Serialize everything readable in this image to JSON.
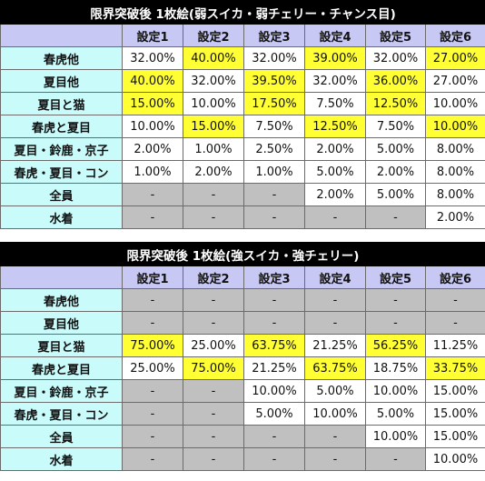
{
  "tables": [
    {
      "title": "限界突破後 1枚絵(弱スイカ・弱チェリー・チャンス目)",
      "columns": [
        "設定1",
        "設定2",
        "設定3",
        "設定4",
        "設定5",
        "設定6"
      ],
      "rows": [
        {
          "label": "春虎他",
          "values": [
            "32.00%",
            "40.00%",
            "32.00%",
            "39.00%",
            "32.00%",
            "27.00%"
          ],
          "highlight": [
            false,
            true,
            false,
            true,
            false,
            true
          ]
        },
        {
          "label": "夏目他",
          "values": [
            "40.00%",
            "32.00%",
            "39.50%",
            "32.00%",
            "36.00%",
            "27.00%"
          ],
          "highlight": [
            true,
            false,
            true,
            false,
            true,
            false
          ]
        },
        {
          "label": "夏目と猫",
          "values": [
            "15.00%",
            "10.00%",
            "17.50%",
            "7.50%",
            "12.50%",
            "10.00%"
          ],
          "highlight": [
            true,
            false,
            true,
            false,
            true,
            false
          ]
        },
        {
          "label": "春虎と夏目",
          "values": [
            "10.00%",
            "15.00%",
            "7.50%",
            "12.50%",
            "7.50%",
            "10.00%"
          ],
          "highlight": [
            false,
            true,
            false,
            true,
            false,
            true
          ]
        },
        {
          "label": "夏目・鈴鹿・京子",
          "values": [
            "2.00%",
            "1.00%",
            "2.50%",
            "2.00%",
            "5.00%",
            "8.00%"
          ],
          "highlight": [
            false,
            false,
            false,
            false,
            false,
            false
          ]
        },
        {
          "label": "春虎・夏目・コン",
          "values": [
            "1.00%",
            "2.00%",
            "1.00%",
            "5.00%",
            "2.00%",
            "8.00%"
          ],
          "highlight": [
            false,
            false,
            false,
            false,
            false,
            false
          ]
        },
        {
          "label": "全員",
          "values": [
            "-",
            "-",
            "-",
            "2.00%",
            "5.00%",
            "8.00%"
          ],
          "highlight": [
            false,
            false,
            false,
            false,
            false,
            false
          ]
        },
        {
          "label": "水着",
          "values": [
            "-",
            "-",
            "-",
            "-",
            "-",
            "2.00%"
          ],
          "highlight": [
            false,
            false,
            false,
            false,
            false,
            false
          ]
        }
      ]
    },
    {
      "title": "限界突破後 1枚絵(強スイカ・強チェリー)",
      "columns": [
        "設定1",
        "設定2",
        "設定3",
        "設定4",
        "設定5",
        "設定6"
      ],
      "rows": [
        {
          "label": "春虎他",
          "values": [
            "-",
            "-",
            "-",
            "-",
            "-",
            "-"
          ],
          "highlight": [
            false,
            false,
            false,
            false,
            false,
            false
          ]
        },
        {
          "label": "夏目他",
          "values": [
            "-",
            "-",
            "-",
            "-",
            "-",
            "-"
          ],
          "highlight": [
            false,
            false,
            false,
            false,
            false,
            false
          ]
        },
        {
          "label": "夏目と猫",
          "values": [
            "75.00%",
            "25.00%",
            "63.75%",
            "21.25%",
            "56.25%",
            "11.25%"
          ],
          "highlight": [
            true,
            false,
            true,
            false,
            true,
            false
          ]
        },
        {
          "label": "春虎と夏目",
          "values": [
            "25.00%",
            "75.00%",
            "21.25%",
            "63.75%",
            "18.75%",
            "33.75%"
          ],
          "highlight": [
            false,
            true,
            false,
            true,
            false,
            true
          ]
        },
        {
          "label": "夏目・鈴鹿・京子",
          "values": [
            "-",
            "-",
            "10.00%",
            "5.00%",
            "10.00%",
            "15.00%"
          ],
          "highlight": [
            false,
            false,
            false,
            false,
            false,
            false
          ]
        },
        {
          "label": "春虎・夏目・コン",
          "values": [
            "-",
            "-",
            "5.00%",
            "10.00%",
            "5.00%",
            "15.00%"
          ],
          "highlight": [
            false,
            false,
            false,
            false,
            false,
            false
          ]
        },
        {
          "label": "全員",
          "values": [
            "-",
            "-",
            "-",
            "-",
            "10.00%",
            "15.00%"
          ],
          "highlight": [
            false,
            false,
            false,
            false,
            false,
            false
          ]
        },
        {
          "label": "水着",
          "values": [
            "-",
            "-",
            "-",
            "-",
            "-",
            "10.00%"
          ],
          "highlight": [
            false,
            false,
            false,
            false,
            false,
            false
          ]
        }
      ]
    }
  ]
}
